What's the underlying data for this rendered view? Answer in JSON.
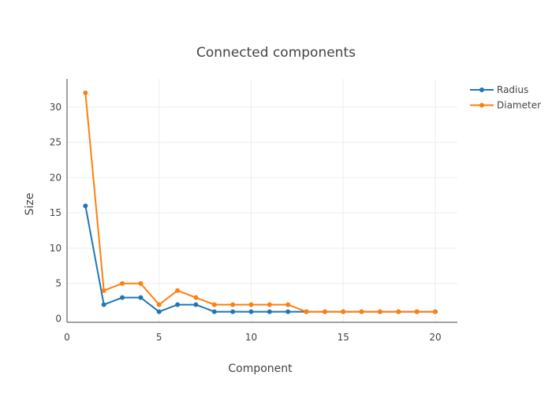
{
  "chart_data": {
    "type": "line",
    "title": "Connected components",
    "xlabel": "Component",
    "ylabel": "Size",
    "xlim": [
      0,
      21.2
    ],
    "ylim": [
      -0.5,
      34
    ],
    "x_ticks": [
      0,
      5,
      10,
      15,
      20
    ],
    "y_ticks": [
      0,
      5,
      10,
      15,
      20,
      25,
      30
    ],
    "grid": true,
    "legend_position": "top-right",
    "x": [
      1,
      2,
      3,
      4,
      5,
      6,
      7,
      8,
      9,
      10,
      11,
      12,
      13,
      14,
      15,
      16,
      17,
      18,
      19,
      20
    ],
    "series": [
      {
        "name": "Radius",
        "color": "#1f77b4",
        "values": [
          16,
          2,
          3,
          3,
          1,
          2,
          2,
          1,
          1,
          1,
          1,
          1,
          1,
          1,
          1,
          1,
          1,
          1,
          1,
          1
        ]
      },
      {
        "name": "Diameter",
        "color": "#ff7f0e",
        "values": [
          32,
          4,
          5,
          5,
          2,
          4,
          3,
          2,
          2,
          2,
          2,
          2,
          1,
          1,
          1,
          1,
          1,
          1,
          1,
          1
        ]
      }
    ]
  }
}
